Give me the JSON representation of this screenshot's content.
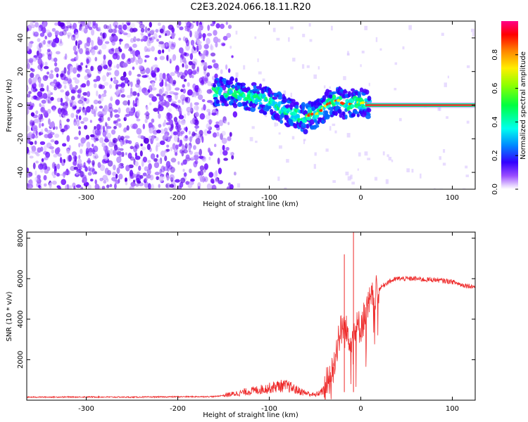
{
  "title": "C2E3.2024.066.18.11.R20",
  "chart_data": [
    {
      "type": "heatmap",
      "name": "spectrogram",
      "xlabel": "Height of straight line (km)",
      "ylabel": "Frequency (Hz)",
      "xlim": [
        -365,
        125
      ],
      "ylim": [
        -50,
        50
      ],
      "xticks": [
        -300,
        -200,
        -100,
        0,
        100
      ],
      "xtick_labels": [
        "-300",
        "-200",
        "-100",
        "0",
        "100"
      ],
      "yticks": [
        -40,
        -20,
        0,
        20,
        40
      ],
      "ytick_labels": [
        "-40",
        "-20",
        "0",
        "20",
        "40"
      ],
      "colorbar": {
        "label": "Normalized spectral amplitude",
        "range": [
          0,
          1
        ],
        "ticks": [
          0.0,
          0.2,
          0.4,
          0.6,
          0.8
        ],
        "tick_labels": [
          "0.0",
          "0.2",
          "0.4",
          "0.6",
          "0.8"
        ],
        "colormap": "rainbow"
      },
      "signal_trace": {
        "description": "frequency of strongest signal vs height",
        "x": [
          -150,
          -140,
          -130,
          -120,
          -110,
          -100,
          -90,
          -80,
          -70,
          -60,
          -55,
          -50,
          -45,
          -40,
          -35,
          -30,
          -25,
          -20,
          -15,
          -10,
          -5,
          0,
          5,
          10,
          125
        ],
        "freq": [
          8,
          8,
          6,
          5,
          4,
          2,
          -1,
          -4,
          -6,
          -8,
          -5,
          -6,
          -4,
          -1,
          1,
          2,
          3,
          1,
          0,
          1,
          2,
          1,
          2,
          0,
          0
        ]
      },
      "noise_region": {
        "x_range": [
          -365,
          -150
        ],
        "freq_range": [
          -50,
          50
        ]
      }
    },
    {
      "type": "line",
      "name": "snr",
      "xlabel": "Height of straight line (km)",
      "ylabel": "SNR (10 * v/v)",
      "xlim": [
        -365,
        125
      ],
      "ylim": [
        0,
        8300
      ],
      "xticks": [
        -300,
        -200,
        -100,
        0,
        100
      ],
      "xtick_labels": [
        "-300",
        "-200",
        "-100",
        "0",
        "100"
      ],
      "yticks": [
        2000,
        4000,
        6000,
        8000
      ],
      "ytick_labels": [
        "2000",
        "4000",
        "6000",
        "8000"
      ],
      "color": "#ee2a2a",
      "series": [
        {
          "name": "SNR",
          "x": [
            -365,
            -300,
            -250,
            -200,
            -160,
            -140,
            -120,
            -100,
            -90,
            -80,
            -70,
            -60,
            -50,
            -40,
            -30,
            -25,
            -20,
            -15,
            -10,
            -5,
            0,
            5,
            10,
            20,
            30,
            40,
            50,
            60,
            70,
            80,
            90,
            100,
            110,
            125
          ],
          "y": [
            150,
            160,
            150,
            170,
            180,
            300,
            450,
            600,
            700,
            700,
            500,
            350,
            250,
            500,
            1500,
            3000,
            3600,
            3300,
            3200,
            3500,
            3700,
            4200,
            4800,
            5500,
            5850,
            6000,
            6000,
            6000,
            5950,
            5950,
            5900,
            5850,
            5700,
            5600
          ]
        }
      ],
      "annotations": [
        {
          "x": -18,
          "y": 7200,
          "label": ""
        },
        {
          "x": -8,
          "y": 8300,
          "label": ""
        }
      ]
    }
  ]
}
